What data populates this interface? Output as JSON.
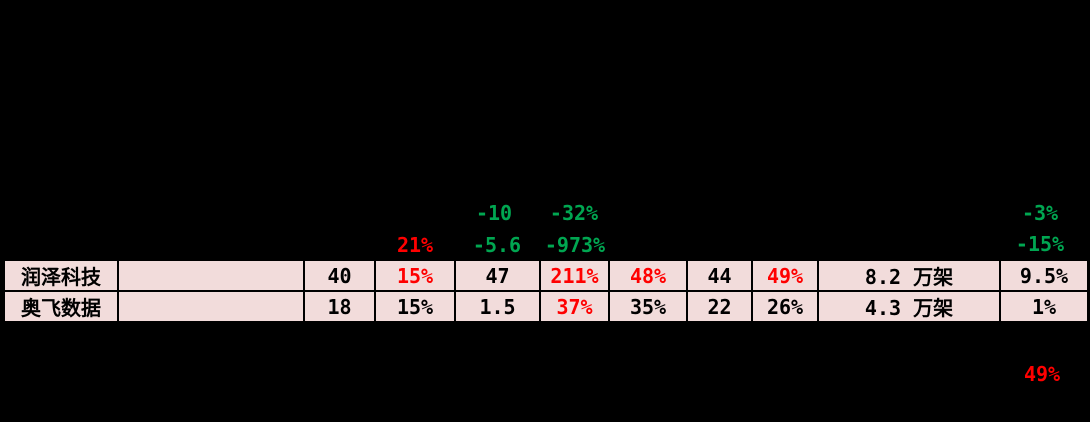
{
  "colors": {
    "background": "#000000",
    "row_highlight": "#f2dcdb",
    "border": "#000000",
    "red": "#ff0000",
    "green": "#00a651",
    "black_text": "#000000"
  },
  "chart_data": {
    "type": "table",
    "rows": [
      {
        "cells": [
          {
            "text": "润泽科技",
            "color": "#000000"
          },
          {
            "text": "",
            "color": "#000000"
          },
          {
            "text": "40",
            "color": "#000000"
          },
          {
            "text": "15%",
            "color": "#ff0000"
          },
          {
            "text": "47",
            "color": "#000000"
          },
          {
            "text": "211%",
            "color": "#ff0000"
          },
          {
            "text": "48%",
            "color": "#ff0000"
          },
          {
            "text": "44",
            "color": "#000000"
          },
          {
            "text": "49%",
            "color": "#ff0000"
          },
          {
            "text": "8.2 万架",
            "color": "#000000"
          },
          {
            "text": "9.5%",
            "color": "#000000"
          }
        ]
      },
      {
        "cells": [
          {
            "text": "奥飞数据",
            "color": "#000000"
          },
          {
            "text": "",
            "color": "#000000"
          },
          {
            "text": "18",
            "color": "#000000"
          },
          {
            "text": "15%",
            "color": "#000000"
          },
          {
            "text": "1.5",
            "color": "#000000"
          },
          {
            "text": "37%",
            "color": "#ff0000"
          },
          {
            "text": "35%",
            "color": "#000000"
          },
          {
            "text": "22",
            "color": "#000000"
          },
          {
            "text": "26%",
            "color": "#000000"
          },
          {
            "text": "4.3 万架",
            "color": "#000000"
          },
          {
            "text": "1%",
            "color": "#000000"
          }
        ]
      }
    ],
    "overlay_values": [
      {
        "text": "-10",
        "color": "#00a651"
      },
      {
        "text": "-32%",
        "color": "#00a651"
      },
      {
        "text": "-3%",
        "color": "#00a651"
      },
      {
        "text": "21%",
        "color": "#ff0000"
      },
      {
        "text": "-5.6",
        "color": "#00a651"
      },
      {
        "text": "-973%",
        "color": "#00a651"
      },
      {
        "text": "-15%",
        "color": "#00a651"
      },
      {
        "text": "49%",
        "color": "#ff0000"
      }
    ]
  }
}
